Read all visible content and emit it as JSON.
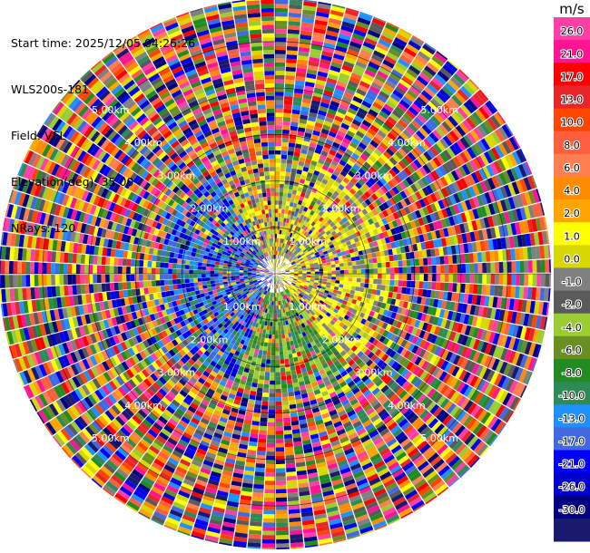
{
  "header": {
    "start_time": "Start time: 2025/12/05 04:26:26",
    "instrument": "WLS200s-181",
    "field": "Field: VEL",
    "elevation": "Elevation(deg): 35.00",
    "nrays": "NRays: 120"
  },
  "colorbar": {
    "unit": "m/s",
    "ticks": [
      "26.0",
      "21.0",
      "17.0",
      "13.0",
      "10.0",
      "8.0",
      "6.0",
      "4.0",
      "2.0",
      "1.0",
      "0.0",
      "-1.0",
      "-2.0",
      "-4.0",
      "-6.0",
      "-8.0",
      "-10.0",
      "-13.0",
      "-17.0",
      "-21.0",
      "-26.0",
      "-30.0"
    ],
    "colors": [
      "#ff3fa6",
      "#ff1493",
      "#ff0000",
      "#e8262a",
      "#ff4500",
      "#ff5f3f",
      "#ff7f50",
      "#ff8c00",
      "#ffa500",
      "#ffff00",
      "#d8d800",
      "#808080",
      "#5a5a5a",
      "#9acd32",
      "#6b8e23",
      "#228b22",
      "#2e8b57",
      "#1e90ff",
      "#4169e1",
      "#0000ff",
      "#0000cd",
      "#000080",
      "#191970"
    ]
  },
  "chart_data": {
    "type": "heatmap",
    "title": "",
    "field": "VEL",
    "nrays": 120,
    "range_rings_km": [
      1,
      2,
      3,
      4,
      5
    ],
    "ring_labels": [
      "1.00km",
      "2.00km",
      "3.00km",
      "4.00km",
      "5.00km"
    ],
    "max_range_km": 5.9,
    "colorscale_min": -30.0,
    "colorscale_max": 26.0
  }
}
